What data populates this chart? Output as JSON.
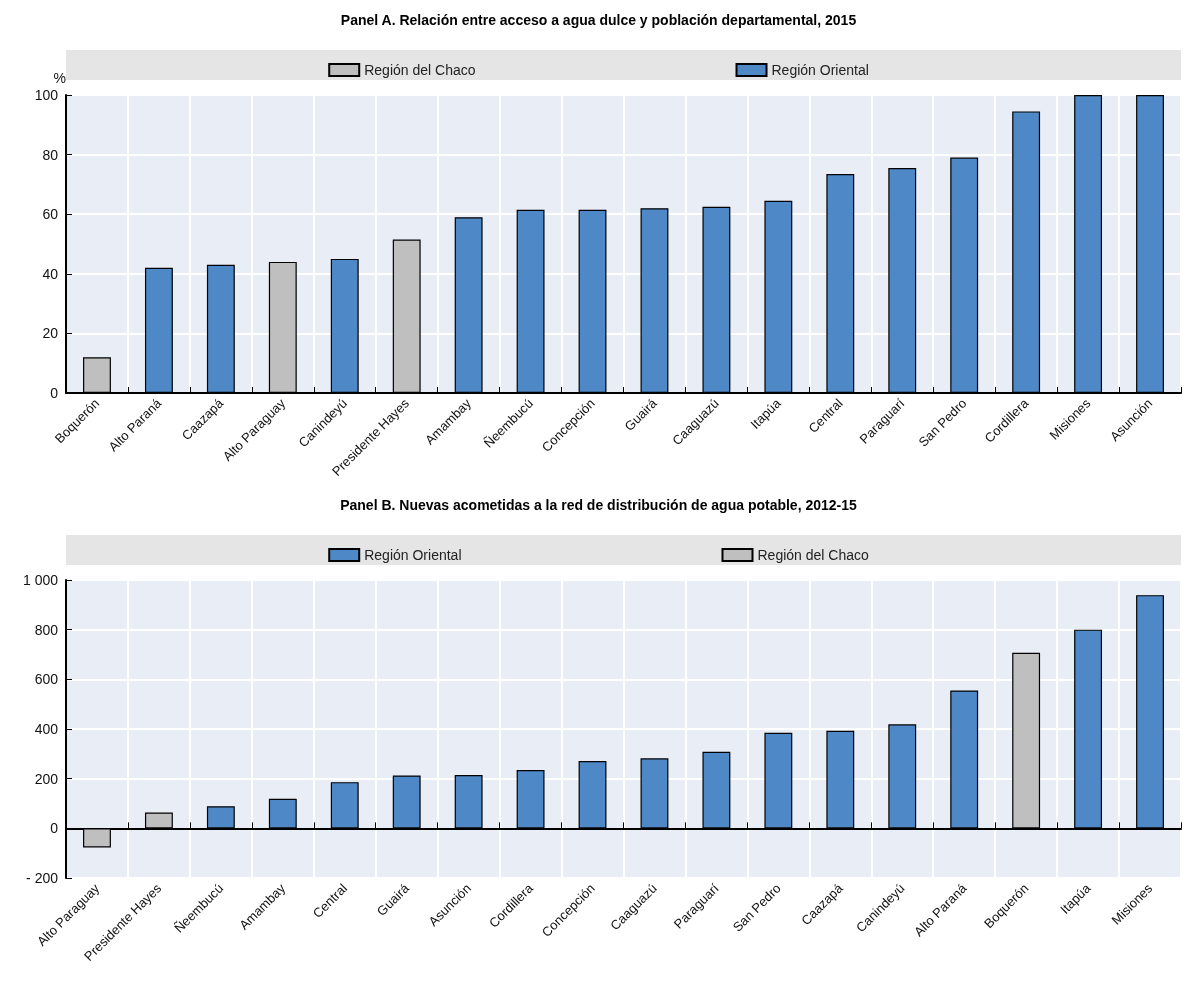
{
  "chart_data": [
    {
      "type": "bar",
      "title": "Panel A. Relación entre acceso a agua dulce y población departamental, 2015",
      "ylabel": "%",
      "categories": [
        "Boquerón",
        "Alto Paraná",
        "Caazapá",
        "Alto Paraguay",
        "Canindeyú",
        "Presidente Hayes",
        "Amambay",
        "Ñeembucú",
        "Concepción",
        "Guairá",
        "Caaguazú",
        "Itapúa",
        "Central",
        "Paraguarí",
        "San Pedro",
        "Cordillera",
        "Misiones",
        "Asunción"
      ],
      "series": [
        {
          "name": "Región del Chaco",
          "color": "#bfbfbf",
          "values": [
            12,
            null,
            null,
            44,
            null,
            51.5,
            null,
            null,
            null,
            null,
            null,
            null,
            null,
            null,
            null,
            null,
            null,
            null
          ]
        },
        {
          "name": "Región Oriental",
          "color": "#4e88c7",
          "values": [
            null,
            42,
            43,
            null,
            45,
            null,
            59,
            61.5,
            61.5,
            62,
            62.5,
            64.5,
            73.5,
            75.5,
            79,
            94.5,
            100,
            100
          ]
        }
      ],
      "stacked": true,
      "ylim": [
        0,
        100
      ],
      "yticks": [
        0,
        20,
        40,
        60,
        80,
        100
      ],
      "grid": true,
      "legend": "top"
    },
    {
      "type": "bar",
      "title": "Panel B. Nuevas acometidas a la red de distribución de agua potable, 2012-15",
      "categories": [
        "Alto Paraguay",
        "Presidente Hayes",
        "Ñeembucú",
        "Amambay",
        "Central",
        "Guairá",
        "Asunción",
        "Cordillera",
        "Concepción",
        "Caaguazú",
        "Paraguarí",
        "San Pedro",
        "Caazapá",
        "Canindeyú",
        "Alto Paraná",
        "Boquerón",
        "Itapúa",
        "Misiones"
      ],
      "series": [
        {
          "name": "Región Oriental",
          "color": "#4e88c7",
          "values": [
            null,
            null,
            89,
            119,
            186,
            213,
            215,
            235,
            271,
            282,
            308,
            385,
            393,
            419,
            555,
            null,
            800,
            939
          ]
        },
        {
          "name": "Región del Chaco",
          "color": "#bfbfbf",
          "values": [
            -77,
            64,
            null,
            null,
            null,
            null,
            null,
            null,
            null,
            null,
            null,
            null,
            null,
            null,
            null,
            707,
            null,
            null
          ]
        }
      ],
      "stacked": true,
      "ylim": [
        -200,
        1000
      ],
      "yticks": [
        {
          "value": -200,
          "label": "- 200"
        },
        0,
        200,
        400,
        600,
        800,
        {
          "value": 1000,
          "label": "1 000"
        }
      ],
      "grid": true,
      "legend": "top"
    }
  ]
}
